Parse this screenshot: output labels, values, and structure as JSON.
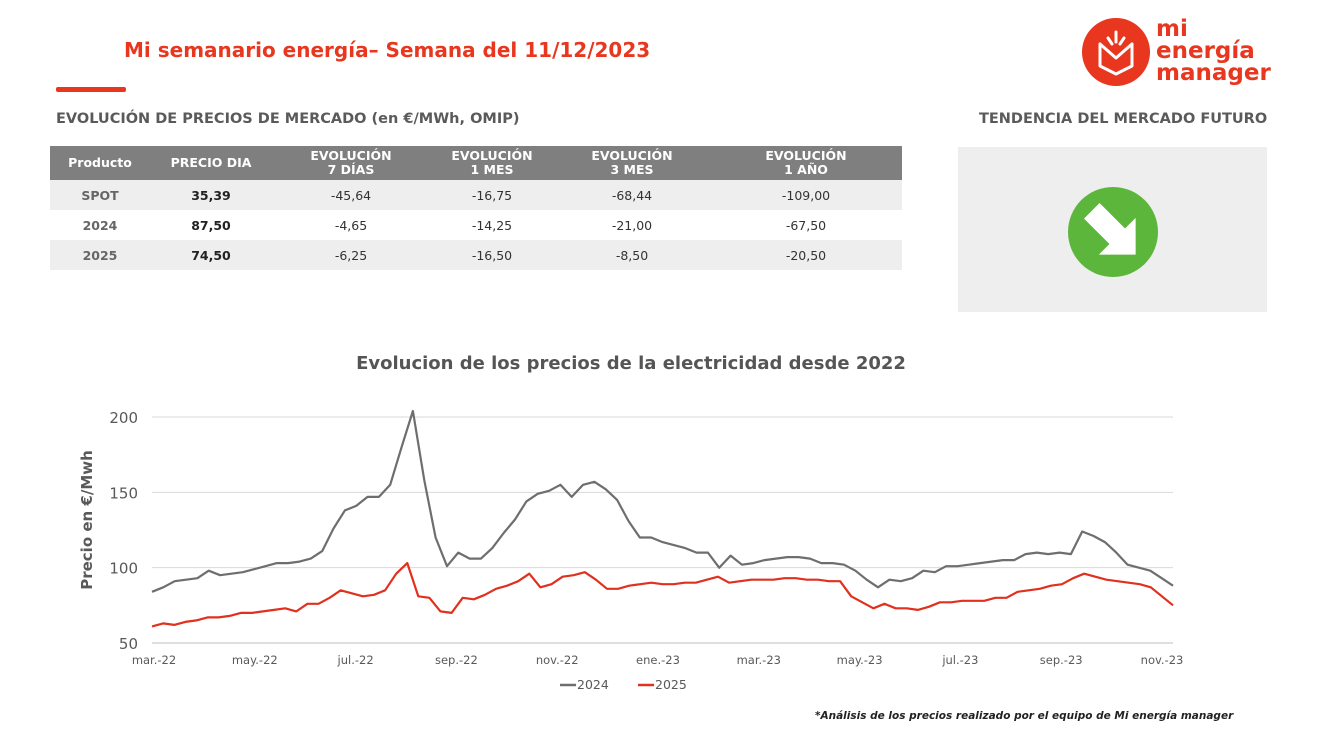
{
  "header": {
    "title": "Mi semanario energía– Semana del 11/12/2023"
  },
  "logo": {
    "line1": "mi",
    "line2": "energía",
    "line3": "manager"
  },
  "table_section": {
    "title": "EVOLUCIÓN DE PRECIOS DE MERCADO (en €/MWh, OMIP)"
  },
  "trend_section": {
    "title": "TENDENCIA DEL MERCADO FUTURO",
    "trend_icon": "down-right-arrow-icon",
    "trend_color": "#5db63c"
  },
  "table": {
    "headers": [
      {
        "l1": "Producto",
        "l2": ""
      },
      {
        "l1": "PRECIO DIA",
        "l2": ""
      },
      {
        "l1": "EVOLUCIÓN",
        "l2": "7 DÍAS"
      },
      {
        "l1": "EVOLUCIÓN",
        "l2": "1 MES"
      },
      {
        "l1": "EVOLUCIÓN",
        "l2": "3 MES"
      },
      {
        "l1": "EVOLUCIÓN",
        "l2": "1 AÑO"
      }
    ],
    "rows": [
      {
        "product": "SPOT",
        "price": "35,39",
        "d7": "-45,64",
        "m1": "-16,75",
        "m3": "-68,44",
        "y1": "-109,00"
      },
      {
        "product": "2024",
        "price": "87,50",
        "d7": "-4,65",
        "m1": "-14,25",
        "m3": "-21,00",
        "y1": "-67,50"
      },
      {
        "product": "2025",
        "price": "74,50",
        "d7": "-6,25",
        "m1": "-16,50",
        "m3": "-8,50",
        "y1": "-20,50"
      }
    ]
  },
  "chart_data": {
    "type": "line",
    "title": "Evolucion de los precios de la electricidad desde 2022",
    "xlabel": "",
    "ylabel": "Precio en €/Mwh",
    "ylim": [
      50,
      200
    ],
    "yticks": [
      50,
      100,
      150,
      200
    ],
    "grid": true,
    "legend_position": "bottom",
    "x_tick_labels": [
      "mar.-22",
      "may.-22",
      "jul.-22",
      "sep.-22",
      "nov.-22",
      "ene.-23",
      "mar.-23",
      "may.-23",
      "jul.-23",
      "sep.-23",
      "nov.-23"
    ],
    "series": [
      {
        "name": "2024",
        "color": "#6e6e6e",
        "values": [
          84,
          87,
          91,
          92,
          93,
          98,
          95,
          96,
          97,
          99,
          101,
          103,
          103,
          104,
          106,
          111,
          126,
          138,
          141,
          147,
          147,
          155,
          180,
          204,
          158,
          120,
          101,
          110,
          106,
          106,
          113,
          123,
          132,
          144,
          149,
          151,
          155,
          147,
          155,
          157,
          152,
          145,
          131,
          120,
          120,
          117,
          115,
          113,
          110,
          110,
          100,
          108,
          102,
          103,
          105,
          106,
          107,
          107,
          106,
          103,
          103,
          102,
          98,
          92,
          87,
          92,
          91,
          93,
          98,
          97,
          101,
          101,
          102,
          103,
          104,
          105,
          105,
          109,
          110,
          109,
          110,
          109,
          124,
          121,
          117,
          110,
          102,
          100,
          98,
          93,
          88
        ]
      },
      {
        "name": "2025",
        "color": "#e0301e",
        "values": [
          61,
          63,
          62,
          64,
          65,
          67,
          67,
          68,
          70,
          70,
          71,
          72,
          73,
          71,
          76,
          76,
          80,
          85,
          83,
          81,
          82,
          85,
          96,
          103,
          81,
          80,
          71,
          70,
          80,
          79,
          82,
          86,
          88,
          91,
          96,
          87,
          89,
          94,
          95,
          97,
          92,
          86,
          86,
          88,
          89,
          90,
          89,
          89,
          90,
          90,
          92,
          94,
          90,
          91,
          92,
          92,
          92,
          93,
          93,
          92,
          92,
          91,
          91,
          81,
          77,
          73,
          76,
          73,
          73,
          72,
          74,
          77,
          77,
          78,
          78,
          78,
          80,
          80,
          84,
          85,
          86,
          88,
          89,
          93,
          96,
          94,
          92,
          91,
          90,
          89,
          87,
          81,
          75
        ]
      }
    ]
  },
  "footnote": "*Análisis de los precios realizado por el equipo de Mi energía manager"
}
